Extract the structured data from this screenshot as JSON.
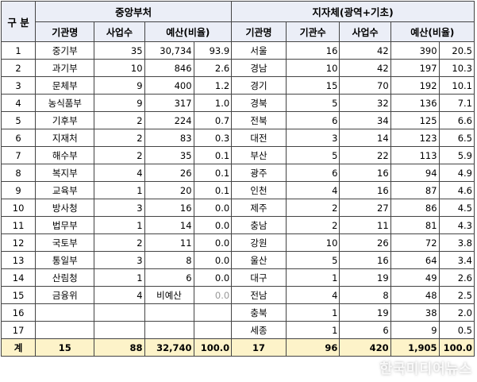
{
  "header": {
    "gubun": "구 분",
    "central_title": "중앙부처",
    "local_title": "지자체(광역+기초)",
    "central_cols": [
      "기관명",
      "사업수",
      "예산(비율)"
    ],
    "local_cols": [
      "기관명",
      "기관수",
      "사업수",
      "예산(비율)"
    ]
  },
  "rows": [
    {
      "no": "1",
      "c_org": "중기부",
      "c_proj": "35",
      "c_budget": "30,734",
      "c_ratio": "93.9",
      "l_org": "서울",
      "l_inst": "16",
      "l_proj": "42",
      "l_budget": "390",
      "l_ratio": "20.5"
    },
    {
      "no": "2",
      "c_org": "과기부",
      "c_proj": "10",
      "c_budget": "846",
      "c_ratio": "2.6",
      "l_org": "경남",
      "l_inst": "10",
      "l_proj": "42",
      "l_budget": "197",
      "l_ratio": "10.3"
    },
    {
      "no": "3",
      "c_org": "문체부",
      "c_proj": "9",
      "c_budget": "400",
      "c_ratio": "1.2",
      "l_org": "경기",
      "l_inst": "15",
      "l_proj": "70",
      "l_budget": "192",
      "l_ratio": "10.1"
    },
    {
      "no": "4",
      "c_org": "농식품부",
      "c_proj": "9",
      "c_budget": "317",
      "c_ratio": "1.0",
      "l_org": "경북",
      "l_inst": "5",
      "l_proj": "32",
      "l_budget": "136",
      "l_ratio": "7.1"
    },
    {
      "no": "5",
      "c_org": "기후부",
      "c_proj": "2",
      "c_budget": "224",
      "c_ratio": "0.7",
      "l_org": "전북",
      "l_inst": "6",
      "l_proj": "34",
      "l_budget": "125",
      "l_ratio": "6.6"
    },
    {
      "no": "6",
      "c_org": "지재처",
      "c_proj": "2",
      "c_budget": "83",
      "c_ratio": "0.3",
      "l_org": "대전",
      "l_inst": "3",
      "l_proj": "14",
      "l_budget": "123",
      "l_ratio": "6.5"
    },
    {
      "no": "7",
      "c_org": "해수부",
      "c_proj": "2",
      "c_budget": "35",
      "c_ratio": "0.1",
      "l_org": "부산",
      "l_inst": "5",
      "l_proj": "22",
      "l_budget": "113",
      "l_ratio": "5.9"
    },
    {
      "no": "8",
      "c_org": "복지부",
      "c_proj": "4",
      "c_budget": "26",
      "c_ratio": "0.1",
      "l_org": "광주",
      "l_inst": "6",
      "l_proj": "16",
      "l_budget": "94",
      "l_ratio": "4.9"
    },
    {
      "no": "9",
      "c_org": "교육부",
      "c_proj": "1",
      "c_budget": "20",
      "c_ratio": "0.1",
      "l_org": "인천",
      "l_inst": "4",
      "l_proj": "16",
      "l_budget": "87",
      "l_ratio": "4.6"
    },
    {
      "no": "10",
      "c_org": "방사청",
      "c_proj": "3",
      "c_budget": "16",
      "c_ratio": "0.0",
      "l_org": "제주",
      "l_inst": "2",
      "l_proj": "27",
      "l_budget": "86",
      "l_ratio": "4.5"
    },
    {
      "no": "11",
      "c_org": "법무부",
      "c_proj": "1",
      "c_budget": "14",
      "c_ratio": "0.0",
      "l_org": "충남",
      "l_inst": "2",
      "l_proj": "11",
      "l_budget": "81",
      "l_ratio": "4.3"
    },
    {
      "no": "12",
      "c_org": "국토부",
      "c_proj": "2",
      "c_budget": "11",
      "c_ratio": "0.0",
      "l_org": "강원",
      "l_inst": "10",
      "l_proj": "26",
      "l_budget": "72",
      "l_ratio": "3.8"
    },
    {
      "no": "13",
      "c_org": "통일부",
      "c_proj": "3",
      "c_budget": "8",
      "c_ratio": "0.0",
      "l_org": "울산",
      "l_inst": "5",
      "l_proj": "16",
      "l_budget": "64",
      "l_ratio": "3.4"
    },
    {
      "no": "14",
      "c_org": "산림청",
      "c_proj": "1",
      "c_budget": "6",
      "c_ratio": "0.0",
      "l_org": "대구",
      "l_inst": "1",
      "l_proj": "19",
      "l_budget": "49",
      "l_ratio": "2.6"
    },
    {
      "no": "15",
      "c_org": "금융위",
      "c_proj": "4",
      "c_budget": "비예산",
      "c_ratio": "0.0",
      "l_org": "전남",
      "l_inst": "4",
      "l_proj": "8",
      "l_budget": "48",
      "l_ratio": "2.5"
    },
    {
      "no": "16",
      "c_org": "",
      "c_proj": "",
      "c_budget": "",
      "c_ratio": "",
      "l_org": "충북",
      "l_inst": "1",
      "l_proj": "19",
      "l_budget": "38",
      "l_ratio": "2.0"
    },
    {
      "no": "17",
      "c_org": "",
      "c_proj": "",
      "c_budget": "",
      "c_ratio": "",
      "l_org": "세종",
      "l_inst": "1",
      "l_proj": "6",
      "l_budget": "9",
      "l_ratio": "0.5"
    }
  ],
  "total": {
    "label": "계",
    "c_org": "15",
    "c_proj": "88",
    "c_budget": "32,740",
    "c_ratio": "100.0",
    "l_org": "17",
    "l_inst": "96",
    "l_proj": "420",
    "l_budget": "1,905",
    "l_ratio": "100.0"
  },
  "watermark": "한국미디어뉴스",
  "colors": {
    "header_bg": "#ebeef7",
    "total_bg": "#fdf3c9",
    "border": "#444444"
  }
}
